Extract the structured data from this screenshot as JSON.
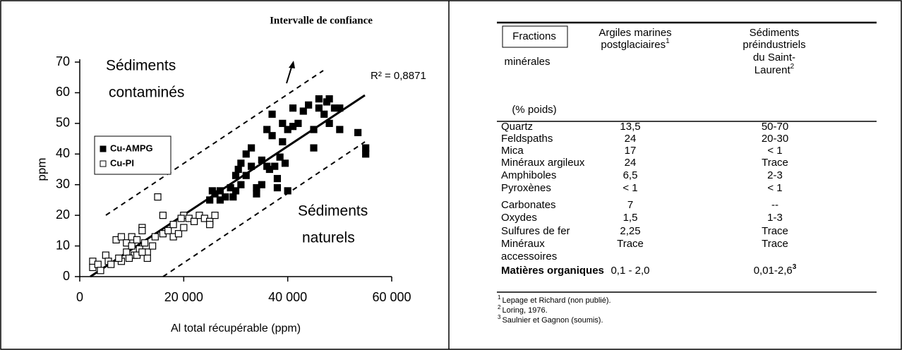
{
  "chart_data": {
    "type": "scatter",
    "xlabel": "Al total récupérable (ppm)",
    "ylabel": "ppm",
    "xlim": [
      0,
      60000
    ],
    "xticks": [
      0,
      {
        "value": 20000,
        "label": "20 000"
      },
      {
        "value": 40000,
        "label": "40 000"
      },
      {
        "value": 60000,
        "label": "60 000"
      }
    ],
    "ylim": [
      0,
      70
    ],
    "yticks": [
      0,
      10,
      20,
      30,
      40,
      50,
      60,
      70
    ],
    "annotations": {
      "interval": "Intervalle de confiance",
      "r2": "R² = 0,8871",
      "contaminated": [
        "Sédiments",
        "contaminés"
      ],
      "natural": [
        "Sédiments",
        "naturels"
      ]
    },
    "series": [
      {
        "name": "Cu-AMPG",
        "color": "#000000",
        "x": [
          25000,
          25500,
          26000,
          27000,
          27000,
          28000,
          29000,
          29500,
          30000,
          30000,
          30500,
          31000,
          31000,
          32000,
          32000,
          33000,
          33000,
          34000,
          34000,
          35000,
          36000,
          36500,
          37000,
          37000,
          37500,
          38000,
          38000,
          38500,
          39000,
          39000,
          39500,
          40000,
          40000,
          41000,
          41000,
          42000,
          43000,
          44000,
          45000,
          45000,
          46000,
          46000,
          47000,
          47500,
          48000,
          48000,
          49000,
          50000,
          50000,
          53500,
          55000,
          55000,
          35000,
          36000
        ],
        "values": [
          25,
          28,
          27,
          28,
          25,
          26,
          29,
          26,
          28,
          33,
          35,
          37,
          30,
          40,
          33,
          42,
          36,
          27,
          29,
          38,
          48,
          35,
          53,
          46,
          36,
          32,
          29,
          39,
          50,
          44,
          37,
          48,
          28,
          49,
          55,
          50,
          54,
          56,
          48,
          42,
          58,
          55,
          53,
          57,
          50,
          58,
          55,
          55,
          48,
          47,
          42,
          40,
          30,
          36
        ]
      },
      {
        "name": "Cu-PI",
        "color": "#ffffff",
        "x": [
          2500,
          2500,
          3500,
          4000,
          5000,
          5500,
          6000,
          7000,
          8000,
          8000,
          9000,
          9000,
          10000,
          10000,
          10500,
          11000,
          11500,
          12000,
          12000,
          12500,
          13000,
          13000,
          14000,
          15000,
          16000,
          16000,
          17000,
          18000,
          18000,
          19000,
          20000,
          20000,
          21000,
          22000,
          23000,
          24000,
          25000,
          25000,
          26000,
          7500,
          9500,
          11000,
          12000,
          14500,
          19500
        ],
        "values": [
          5,
          3,
          4,
          2,
          7,
          5,
          4,
          12,
          13,
          5,
          11,
          8,
          13,
          10,
          7,
          12,
          9,
          16,
          15,
          11,
          8,
          6,
          10,
          26,
          20,
          14,
          15,
          13,
          17,
          14,
          20,
          16,
          19,
          18,
          20,
          19,
          18,
          17,
          20,
          6,
          6,
          7,
          8,
          13,
          19
        ]
      }
    ]
  },
  "table": {
    "header": [
      {
        "lines": [
          "Fractions",
          "minérales",
          "(% poids)"
        ]
      },
      {
        "lines": [
          "Argiles marines",
          "postglaciaires"
        ],
        "note": "1"
      },
      {
        "lines": [
          "Sédiments",
          "préindustriels",
          "du Saint-",
          "Laurent"
        ],
        "note": "2"
      }
    ],
    "rows": [
      [
        [
          "Quartz"
        ],
        [
          "13,5"
        ],
        [
          "50-70"
        ]
      ],
      [
        [
          "Feldspaths"
        ],
        [
          "24"
        ],
        [
          "20-30"
        ]
      ],
      [
        [
          "Mica"
        ],
        [
          "17"
        ],
        [
          "< 1"
        ]
      ],
      [
        [
          "Minéraux argileux"
        ],
        [
          "24"
        ],
        [
          "Trace"
        ]
      ],
      [
        [
          "Amphiboles"
        ],
        [
          "6,5"
        ],
        [
          "2-3"
        ]
      ],
      [
        [
          "Pyroxènes"
        ],
        [
          "< 1"
        ],
        [
          "< 1"
        ]
      ],
      [
        [
          "Carbonates"
        ],
        [
          "7"
        ],
        [
          "--"
        ]
      ],
      [
        [
          "Oxydes"
        ],
        [
          "1,5"
        ],
        [
          "1-3"
        ]
      ],
      [
        [
          "Sulfures de fer"
        ],
        [
          "2,25"
        ],
        [
          "Trace"
        ]
      ],
      [
        [
          "Minéraux",
          "accessoires"
        ],
        [
          "Trace"
        ],
        [
          "Trace"
        ]
      ],
      [
        [
          "Matières organiques"
        ],
        [
          "0,1 - 2,0"
        ],
        [
          "0,01-2,6"
        ]
      ]
    ],
    "last_row_note": "3",
    "footnotes": [
      {
        "mark": "1",
        "text": "Lepage et Richard (non publié)."
      },
      {
        "mark": "2",
        "text": "Loring, 1976."
      },
      {
        "mark": "3",
        "text": "Saulnier et Gagnon (soumis)."
      }
    ]
  }
}
